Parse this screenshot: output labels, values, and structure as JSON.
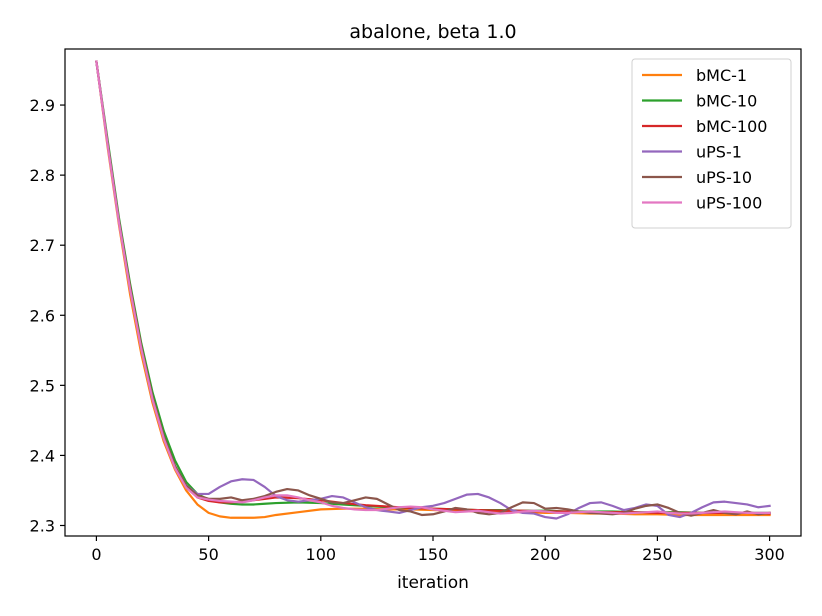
{
  "chart_data": {
    "type": "line",
    "title": "abalone, beta 1.0",
    "xlabel": "iteration",
    "ylabel": "",
    "xlim": [
      -14,
      314
    ],
    "ylim": [
      2.285,
      2.98
    ],
    "xticks": [
      0,
      50,
      100,
      150,
      200,
      250,
      300
    ],
    "yticks": [
      2.3,
      2.4,
      2.5,
      2.6,
      2.7,
      2.8,
      2.9
    ],
    "grid": false,
    "legend_position": "top-right",
    "series": [
      {
        "name": "bMC-1",
        "color": "#ff7f0e",
        "x": [
          0,
          5,
          10,
          15,
          20,
          25,
          30,
          35,
          40,
          45,
          50,
          55,
          60,
          65,
          70,
          75,
          80,
          90,
          100,
          110,
          120,
          130,
          140,
          150,
          160,
          170,
          180,
          190,
          200,
          210,
          220,
          230,
          240,
          250,
          260,
          270,
          280,
          290,
          300
        ],
        "y": [
          2.962,
          2.84,
          2.73,
          2.63,
          2.545,
          2.475,
          2.42,
          2.38,
          2.35,
          2.33,
          2.318,
          2.313,
          2.311,
          2.311,
          2.311,
          2.312,
          2.315,
          2.319,
          2.323,
          2.324,
          2.324,
          2.323,
          2.323,
          2.322,
          2.321,
          2.32,
          2.319,
          2.319,
          2.318,
          2.318,
          2.317,
          2.317,
          2.316,
          2.316,
          2.315,
          2.315,
          2.315,
          2.315,
          2.315
        ]
      },
      {
        "name": "bMC-10",
        "color": "#2ca02c",
        "x": [
          0,
          5,
          10,
          15,
          20,
          25,
          30,
          35,
          40,
          45,
          50,
          55,
          60,
          65,
          70,
          75,
          80,
          90,
          100,
          110,
          120,
          130,
          140,
          150,
          160,
          170,
          180,
          190,
          200,
          210,
          220,
          230,
          240,
          250,
          260,
          270,
          280,
          290,
          300
        ],
        "y": [
          2.962,
          2.85,
          2.74,
          2.645,
          2.56,
          2.49,
          2.435,
          2.393,
          2.362,
          2.345,
          2.337,
          2.333,
          2.331,
          2.33,
          2.33,
          2.331,
          2.332,
          2.333,
          2.332,
          2.33,
          2.328,
          2.326,
          2.325,
          2.324,
          2.323,
          2.322,
          2.322,
          2.321,
          2.321,
          2.32,
          2.32,
          2.32,
          2.319,
          2.319,
          2.319,
          2.318,
          2.318,
          2.318,
          2.318
        ]
      },
      {
        "name": "bMC-100",
        "color": "#d62728",
        "x": [
          0,
          5,
          10,
          15,
          20,
          25,
          30,
          35,
          40,
          45,
          50,
          55,
          60,
          65,
          70,
          75,
          80,
          90,
          100,
          110,
          120,
          130,
          140,
          150,
          160,
          170,
          180,
          190,
          200,
          210,
          220,
          230,
          240,
          250,
          260,
          270,
          280,
          290,
          300
        ],
        "y": [
          2.962,
          2.845,
          2.735,
          2.64,
          2.555,
          2.483,
          2.427,
          2.385,
          2.356,
          2.34,
          2.335,
          2.333,
          2.333,
          2.334,
          2.336,
          2.338,
          2.34,
          2.339,
          2.336,
          2.332,
          2.329,
          2.327,
          2.325,
          2.324,
          2.323,
          2.322,
          2.321,
          2.321,
          2.32,
          2.32,
          2.319,
          2.319,
          2.319,
          2.318,
          2.318,
          2.318,
          2.318,
          2.318,
          2.317
        ]
      },
      {
        "name": "uPS-1",
        "color": "#9467bd",
        "x": [
          0,
          5,
          10,
          15,
          20,
          25,
          30,
          35,
          40,
          45,
          50,
          55,
          60,
          65,
          70,
          75,
          80,
          85,
          90,
          95,
          100,
          105,
          110,
          115,
          120,
          125,
          130,
          135,
          140,
          145,
          150,
          155,
          160,
          165,
          170,
          175,
          180,
          185,
          190,
          195,
          200,
          205,
          210,
          215,
          220,
          225,
          230,
          235,
          240,
          245,
          250,
          255,
          260,
          265,
          270,
          275,
          280,
          285,
          290,
          295,
          300
        ],
        "y": [
          2.962,
          2.845,
          2.735,
          2.638,
          2.553,
          2.48,
          2.425,
          2.385,
          2.357,
          2.345,
          2.345,
          2.355,
          2.363,
          2.366,
          2.365,
          2.355,
          2.342,
          2.336,
          2.334,
          2.336,
          2.338,
          2.342,
          2.34,
          2.333,
          2.326,
          2.322,
          2.32,
          2.318,
          2.322,
          2.326,
          2.328,
          2.332,
          2.338,
          2.344,
          2.345,
          2.34,
          2.332,
          2.322,
          2.318,
          2.317,
          2.312,
          2.31,
          2.316,
          2.325,
          2.332,
          2.333,
          2.328,
          2.322,
          2.325,
          2.33,
          2.328,
          2.315,
          2.312,
          2.318,
          2.326,
          2.333,
          2.334,
          2.332,
          2.33,
          2.326,
          2.328
        ]
      },
      {
        "name": "uPS-10",
        "color": "#8c564b",
        "x": [
          0,
          5,
          10,
          15,
          20,
          25,
          30,
          35,
          40,
          45,
          50,
          55,
          60,
          65,
          70,
          75,
          80,
          85,
          90,
          95,
          100,
          105,
          110,
          115,
          120,
          125,
          130,
          135,
          140,
          145,
          150,
          155,
          160,
          165,
          170,
          175,
          180,
          185,
          190,
          195,
          200,
          205,
          210,
          215,
          220,
          225,
          230,
          235,
          240,
          245,
          250,
          255,
          260,
          265,
          270,
          275,
          280,
          285,
          290,
          295,
          300
        ],
        "y": [
          2.962,
          2.845,
          2.735,
          2.64,
          2.555,
          2.483,
          2.428,
          2.385,
          2.357,
          2.343,
          2.338,
          2.338,
          2.34,
          2.336,
          2.338,
          2.342,
          2.348,
          2.352,
          2.35,
          2.343,
          2.338,
          2.333,
          2.332,
          2.336,
          2.34,
          2.338,
          2.33,
          2.322,
          2.32,
          2.315,
          2.316,
          2.32,
          2.325,
          2.323,
          2.318,
          2.316,
          2.318,
          2.326,
          2.333,
          2.332,
          2.324,
          2.325,
          2.323,
          2.32,
          2.318,
          2.317,
          2.316,
          2.318,
          2.324,
          2.328,
          2.33,
          2.325,
          2.318,
          2.314,
          2.318,
          2.322,
          2.318,
          2.316,
          2.32,
          2.316,
          2.318
        ]
      },
      {
        "name": "uPS-100",
        "color": "#e377c2",
        "x": [
          0,
          5,
          10,
          15,
          20,
          25,
          30,
          35,
          40,
          45,
          50,
          55,
          60,
          65,
          70,
          75,
          80,
          85,
          90,
          95,
          100,
          105,
          110,
          115,
          120,
          125,
          130,
          135,
          140,
          145,
          150,
          155,
          160,
          165,
          170,
          175,
          180,
          185,
          190,
          195,
          200,
          205,
          210,
          215,
          220,
          225,
          230,
          235,
          240,
          245,
          250,
          255,
          260,
          265,
          270,
          275,
          280,
          285,
          290,
          295,
          300
        ],
        "y": [
          2.962,
          2.843,
          2.733,
          2.637,
          2.552,
          2.48,
          2.424,
          2.382,
          2.354,
          2.34,
          2.337,
          2.335,
          2.334,
          2.333,
          2.336,
          2.34,
          2.343,
          2.343,
          2.34,
          2.336,
          2.333,
          2.328,
          2.325,
          2.323,
          2.322,
          2.322,
          2.324,
          2.326,
          2.327,
          2.326,
          2.323,
          2.321,
          2.319,
          2.32,
          2.321,
          2.319,
          2.317,
          2.318,
          2.32,
          2.321,
          2.32,
          2.318,
          2.318,
          2.319,
          2.32,
          2.319,
          2.318,
          2.317,
          2.318,
          2.319,
          2.32,
          2.318,
          2.317,
          2.317,
          2.318,
          2.319,
          2.32,
          2.319,
          2.318,
          2.318,
          2.318
        ]
      }
    ]
  }
}
